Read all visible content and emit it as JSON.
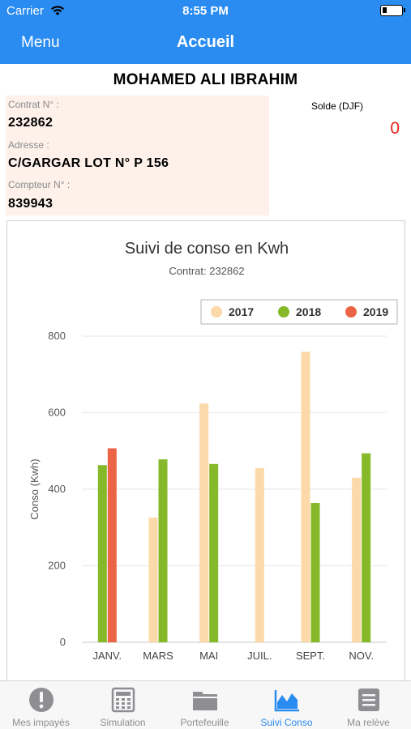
{
  "status_bar": {
    "carrier": "Carrier",
    "time": "8:55 PM"
  },
  "nav": {
    "menu_label": "Menu",
    "title": "Accueil"
  },
  "customer": {
    "name": "MOHAMED ALI IBRAHIM"
  },
  "info": {
    "contract_label": "Contrat N° :",
    "contract_value": "232862",
    "address_label": "Adresse :",
    "address_value": "C/GARGAR LOT N° P 156",
    "meter_label": "Compteur N° :",
    "meter_value": "839943",
    "balance_label": "Solde (DJF)",
    "balance_value": "0"
  },
  "chart_data": {
    "type": "bar",
    "title": "Suivi de conso en Kwh",
    "subtitle": "Contrat: 232862",
    "xlabel": "",
    "ylabel": "Conso (Kwh)",
    "ylim": [
      0,
      800
    ],
    "yticks": [
      0,
      200,
      400,
      600,
      800
    ],
    "grid": true,
    "legend_position": "top-right",
    "categories": [
      "JANV.",
      "MARS",
      "MAI",
      "JUIL.",
      "SEPT.",
      "NOV."
    ],
    "series": [
      {
        "name": "2017",
        "color": "#fcd9a8",
        "values": [
          null,
          326,
          624,
          455,
          759,
          430
        ]
      },
      {
        "name": "2018",
        "color": "#86b92a",
        "values": [
          463,
          478,
          466,
          null,
          364,
          494
        ]
      },
      {
        "name": "2019",
        "color": "#ec6446",
        "values": [
          507,
          null,
          null,
          null,
          null,
          null
        ]
      }
    ]
  },
  "tabs": [
    {
      "label": "Mes impayés",
      "icon": "alert-icon",
      "active": false
    },
    {
      "label": "Simulation",
      "icon": "calculator-icon",
      "active": false
    },
    {
      "label": "Portefeuille",
      "icon": "folder-icon",
      "active": false
    },
    {
      "label": "Suivi Conso",
      "icon": "area-chart-icon",
      "active": true
    },
    {
      "label": "Ma relève",
      "icon": "document-icon",
      "active": false
    }
  ]
}
